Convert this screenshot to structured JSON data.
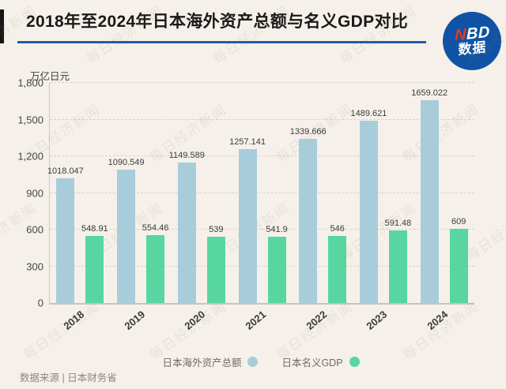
{
  "page": {
    "title": "2018年至2024年日本海外资产总额与名义GDP对比",
    "logo": {
      "n": "N",
      "bd": "BD",
      "line2": "数据"
    },
    "source": "数据来源 | 日本财务省",
    "watermark": "每日经济新闻",
    "accent_rule_color": "#1e5ca6",
    "logo_color": "#1053a4",
    "background_color": "#f5f1ea"
  },
  "chart_data": {
    "type": "bar",
    "categories": [
      "2018",
      "2019",
      "2020",
      "2021",
      "2022",
      "2023",
      "2024"
    ],
    "series": [
      {
        "name": "日本海外资产总额",
        "color": "#a8ccda",
        "values": [
          1018.047,
          1090.549,
          1149.589,
          1257.141,
          1339.666,
          1489.621,
          1659.022
        ],
        "labels": [
          "1018.047",
          "1090.549",
          "1149.589",
          "1257.141",
          "1339.666",
          "1489.621",
          "1659.022"
        ]
      },
      {
        "name": "日本名义GDP",
        "color": "#57d6a2",
        "values": [
          548.91,
          554.46,
          539,
          541.9,
          546,
          591.48,
          609
        ],
        "labels": [
          "548.91",
          "554.46",
          "539",
          "541.9",
          "546",
          "591.48",
          "609"
        ]
      }
    ],
    "title": "2018年至2024年日本海外资产总额与名义GDP对比",
    "xlabel": "",
    "ylabel": "万亿日元",
    "ylim": [
      0,
      1800
    ],
    "yticks": [
      0,
      300,
      600,
      900,
      1200,
      1500,
      1800
    ],
    "ytick_labels": [
      "0",
      "300",
      "600",
      "900",
      "1,200",
      "1,500",
      "1,800"
    ],
    "grid": "horizontal-dashed",
    "legend_position": "bottom"
  }
}
